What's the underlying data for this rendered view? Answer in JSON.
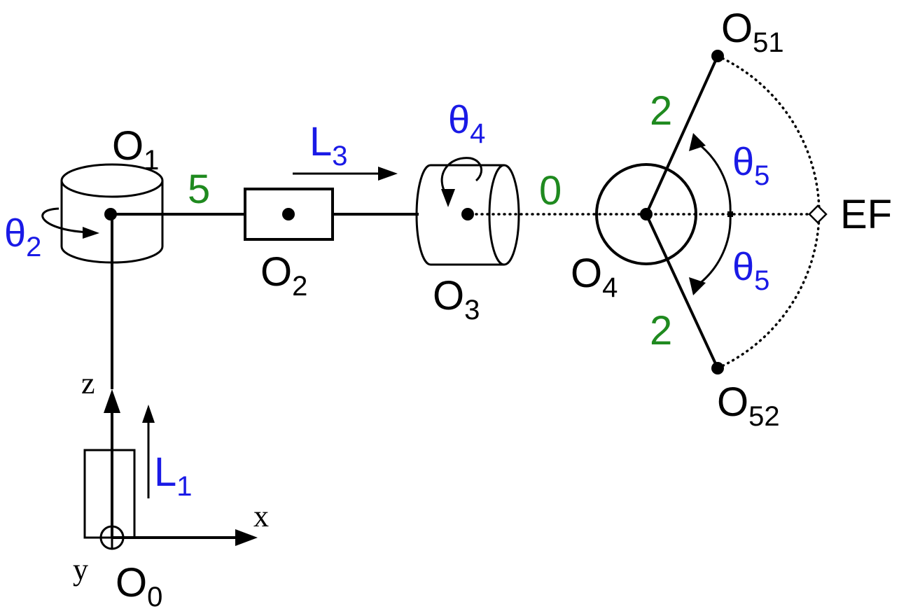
{
  "axes": {
    "x": "x",
    "y": "y",
    "z": "z"
  },
  "origins": {
    "o0": {
      "base": "O",
      "sub": "0"
    },
    "o1": {
      "base": "O",
      "sub": "1"
    },
    "o2": {
      "base": "O",
      "sub": "2"
    },
    "o3": {
      "base": "O",
      "sub": "3"
    },
    "o4": {
      "base": "O",
      "sub": "4"
    },
    "o51": {
      "base": "O",
      "sub": "51"
    },
    "o52": {
      "base": "O",
      "sub": "52"
    }
  },
  "end_effector": "EF",
  "joint_variables": {
    "l1": {
      "base": "L",
      "sub": "1"
    },
    "theta2": {
      "base": "θ",
      "sub": "2"
    },
    "l3": {
      "base": "L",
      "sub": "3"
    },
    "theta4": {
      "base": "θ",
      "sub": "4"
    },
    "theta5_upper": {
      "base": "θ",
      "sub": "5"
    },
    "theta5_lower": {
      "base": "θ",
      "sub": "5"
    }
  },
  "link_lengths": {
    "o1_o2": "5",
    "o3_o4": "0",
    "o4_o51": "2",
    "o4_o52": "2"
  },
  "colors": {
    "variable": "#1a1ae6",
    "length": "#1f8a1f",
    "structure": "#000000"
  }
}
